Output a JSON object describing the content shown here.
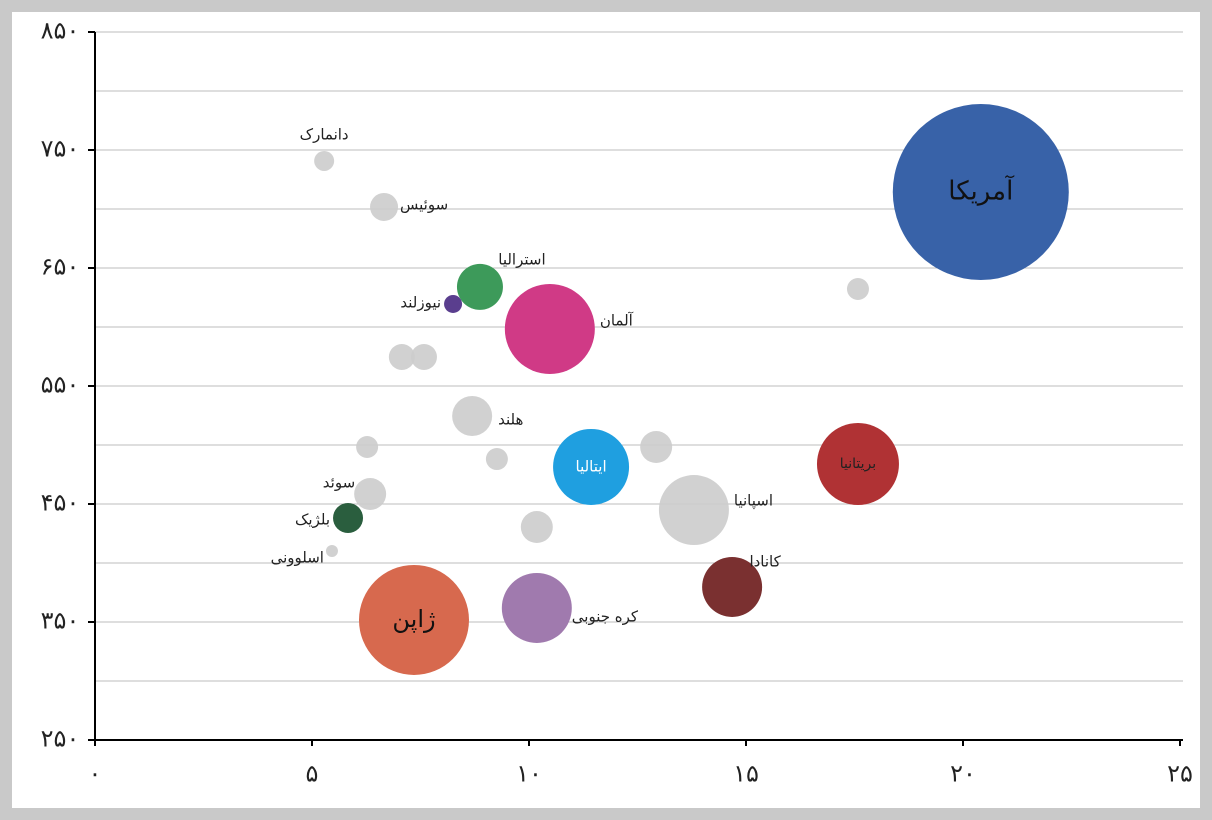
{
  "chart_data": {
    "type": "bubble",
    "series": [
      {
        "labels": [
          "دانمارک",
          "سوئیس",
          "استرالیا",
          "نیوزلند",
          "آلمان",
          null,
          null,
          "هلند",
          null,
          null,
          null,
          "ایتالیا",
          "بریتانیا",
          null,
          "آمریکا",
          "سوئد",
          "بلژیک",
          "اسلوونی",
          null,
          "اسپانیا",
          "کانادا",
          "کره جنوبی",
          "ژاپن"
        ],
        "x": [
          5.28,
          6.66,
          8.87,
          8.25,
          10.48,
          7.07,
          7.58,
          8.69,
          6.27,
          9.26,
          12.93,
          11.43,
          17.58,
          17.58,
          20.41,
          6.34,
          5.83,
          5.46,
          10.18,
          13.8,
          14.68,
          10.18,
          7.35
        ],
        "values": [
          740.7,
          701.7,
          634,
          619.5,
          598.3,
          574.6,
          574.6,
          524.6,
          498.3,
          488.1,
          498.3,
          481.4,
          483.9,
          632.2,
          714.4,
          458.5,
          438.1,
          410.2,
          430.5,
          444.9,
          379.7,
          361.9,
          351.7
        ],
        "sizes": [
          10,
          14,
          23,
          9,
          45,
          13,
          13,
          20,
          11,
          11,
          16,
          38,
          41,
          11,
          88,
          16,
          15,
          6,
          16,
          35,
          30,
          35,
          55
        ],
        "colors": [
          "#cccccc",
          "#cccccc",
          "#3d9a5a",
          "#5a3e8e",
          "#d03a86",
          "#cccccc",
          "#cccccc",
          "#cccccc",
          "#cccccc",
          "#cccccc",
          "#cccccc",
          "#1f9fe0",
          "#b03234",
          "#cccccc",
          "#3862a8",
          "#cccccc",
          "#2a5e3e",
          "#cccccc",
          "#cccccc",
          "#cccccc",
          "#7a3030",
          "#a07aae",
          "#d7694e"
        ]
      }
    ],
    "xlim": [
      0,
      25
    ],
    "xticks": [
      {
        "value": 0,
        "label": "۰"
      },
      {
        "value": 5,
        "label": "۵"
      },
      {
        "value": 10,
        "label": "۱۰"
      },
      {
        "value": 15,
        "label": "۱۵"
      },
      {
        "value": 20,
        "label": "۲۰"
      },
      {
        "value": 25,
        "label": "۲۵"
      }
    ],
    "ylim": [
      250,
      850
    ],
    "yticks": [
      {
        "value": 250,
        "label": "۲۵۰"
      },
      {
        "value": 350,
        "label": "۳۵۰"
      },
      {
        "value": 450,
        "label": "۴۵۰"
      },
      {
        "value": 550,
        "label": "۵۵۰"
      },
      {
        "value": 650,
        "label": "۶۵۰"
      },
      {
        "value": 750,
        "label": "۷۵۰"
      },
      {
        "value": 850,
        "label": "۸۵۰"
      }
    ],
    "yminor": [
      300,
      400,
      500,
      600,
      700,
      800
    ],
    "grid": true
  }
}
